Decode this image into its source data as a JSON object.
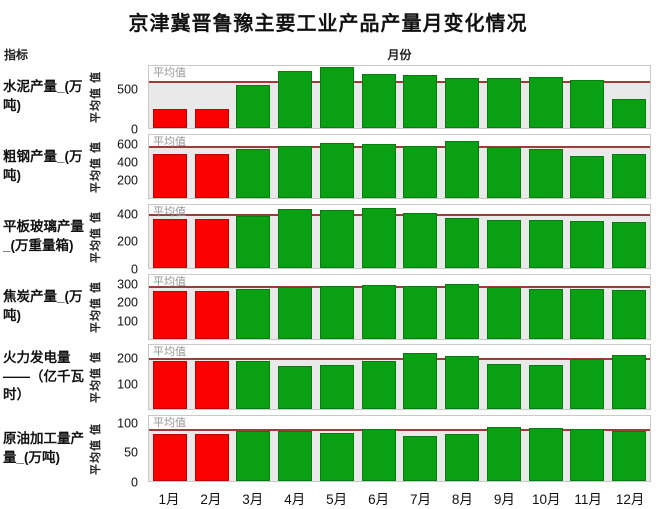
{
  "title": "京津冀晋鲁豫主要工业产品产量月变化情况",
  "headers": {
    "indicator": "指标",
    "month": "月份"
  },
  "yaxis_title": "平均值 值",
  "average_label": "平均值",
  "months": [
    "1月",
    "2月",
    "3月",
    "4月",
    "5月",
    "6月",
    "7月",
    "8月",
    "9月",
    "10月",
    "11月",
    "12月"
  ],
  "red_months": [
    "1月",
    "2月"
  ],
  "colors": {
    "bar_red": "#fa0000",
    "bar_green": "#0aa014",
    "average_line": "#9e3b3b",
    "band": "#e9e9e9",
    "panel_border": "#c9c9c9",
    "average_text": "#969696"
  },
  "chart_data": [
    {
      "type": "bar",
      "indicator": "水泥产量_(万吨)",
      "categories": [
        "1月",
        "2月",
        "3月",
        "4月",
        "5月",
        "6月",
        "7月",
        "8月",
        "9月",
        "10月",
        "11月",
        "12月"
      ],
      "values": [
        255,
        255,
        570,
        755,
        810,
        720,
        705,
        655,
        655,
        680,
        630,
        385
      ],
      "average": 590,
      "yticks": [
        500,
        0
      ],
      "ylim": [
        0,
        820
      ]
    },
    {
      "type": "bar",
      "indicator": "粗钢产量_(万吨)",
      "categories": [
        "1月",
        "2月",
        "3月",
        "4月",
        "5月",
        "6月",
        "7月",
        "8月",
        "9月",
        "10月",
        "11月",
        "12月"
      ],
      "values": [
        505,
        505,
        565,
        600,
        625,
        622,
        600,
        648,
        588,
        560,
        480,
        505
      ],
      "average": 567,
      "yticks": [
        600,
        400,
        200
      ],
      "ylim": [
        0,
        720
      ]
    },
    {
      "type": "bar",
      "indicator": "平板玻璃产量_(万重量箱)",
      "categories": [
        "1月",
        "2月",
        "3月",
        "4月",
        "5月",
        "6月",
        "7月",
        "8月",
        "9月",
        "10月",
        "11月",
        "12月"
      ],
      "values": [
        375,
        375,
        400,
        448,
        438,
        455,
        420,
        382,
        368,
        368,
        357,
        350
      ],
      "average": 395,
      "yticks": [
        400,
        200,
        0
      ],
      "ylim": [
        0,
        480
      ]
    },
    {
      "type": "bar",
      "indicator": "焦炭产量_(万吨)",
      "categories": [
        "1月",
        "2月",
        "3月",
        "4月",
        "5月",
        "6月",
        "7月",
        "8月",
        "9月",
        "10月",
        "11月",
        "12月"
      ],
      "values": [
        267,
        267,
        277,
        290,
        296,
        300,
        293,
        306,
        288,
        277,
        277,
        271
      ],
      "average": 284,
      "yticks": [
        300,
        200,
        100
      ],
      "ylim": [
        0,
        355
      ]
    },
    {
      "type": "bar",
      "indicator": "火力发电量——（亿千瓦时）",
      "categories": [
        "1月",
        "2月",
        "3月",
        "4月",
        "5月",
        "6月",
        "7月",
        "8月",
        "9月",
        "10月",
        "11月",
        "12月"
      ],
      "values": [
        192,
        192,
        192,
        172,
        177,
        193,
        223,
        212,
        180,
        175,
        201,
        216
      ],
      "average": 194,
      "yticks": [
        200,
        100
      ],
      "ylim": [
        0,
        255
      ]
    },
    {
      "type": "bar",
      "indicator": "原油加工量产量_(万吨)",
      "categories": [
        "1月",
        "2月",
        "3月",
        "4月",
        "5月",
        "6月",
        "7月",
        "8月",
        "9月",
        "10月",
        "11月",
        "12月"
      ],
      "values": [
        83,
        83,
        88,
        87,
        85,
        92,
        79,
        83,
        95,
        93,
        91,
        88
      ],
      "average": 88,
      "yticks": [
        100,
        50,
        0
      ],
      "ylim": [
        0,
        114
      ]
    }
  ]
}
